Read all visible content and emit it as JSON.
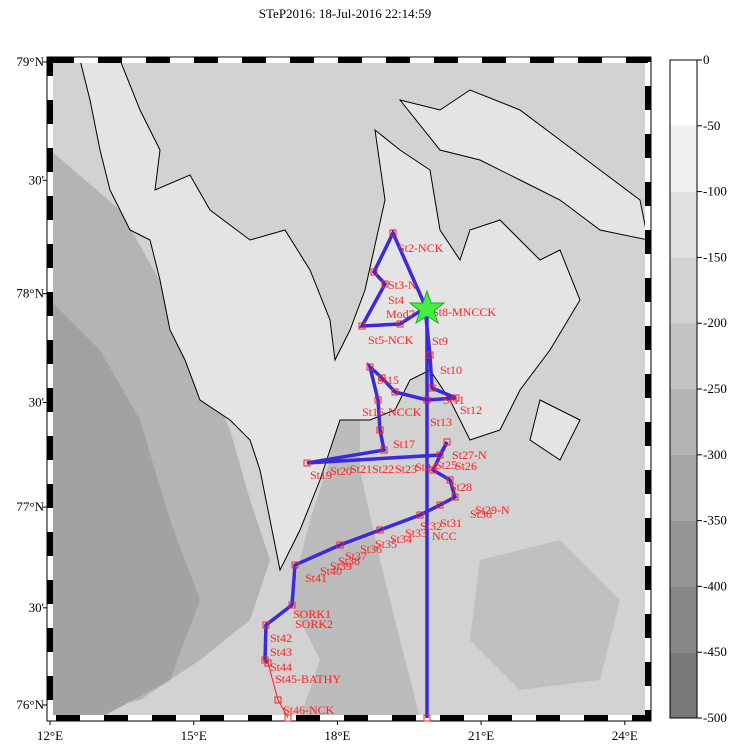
{
  "title": "STeP2016: 18-Jul-2016 22:14:59",
  "map": {
    "lon_ticks": [
      {
        "value": 12,
        "label": "12°E"
      },
      {
        "value": 15,
        "label": "15°E"
      },
      {
        "value": 18,
        "label": "18°E"
      },
      {
        "value": 21,
        "label": "21°E"
      },
      {
        "value": 24,
        "label": "24°E"
      }
    ],
    "lat_ticks": [
      {
        "value": 79,
        "label": "79°N"
      },
      {
        "value": 78.5,
        "label": "30'"
      },
      {
        "value": 78,
        "label": "78°N"
      },
      {
        "value": 77.5,
        "label": "30'"
      },
      {
        "value": 77,
        "label": "77°N"
      },
      {
        "value": 76.5,
        "label": "30'"
      },
      {
        "value": 76,
        "label": "76°N"
      }
    ],
    "stations": [
      "St2-NCK",
      "St3-N",
      "St4",
      "Mod7",
      "St8-MNCCK",
      "St5-NCK",
      "St9",
      "St10",
      "St15",
      "St11",
      "St12",
      "St16-NCCK",
      "St13",
      "St17",
      "St27-N",
      "St26",
      "St19",
      "St20",
      "St21",
      "St22",
      "St23",
      "St24",
      "St25",
      "St28",
      "St29-N",
      "St30",
      "St31",
      "NCC",
      "St32",
      "St33",
      "St34",
      "St35",
      "St36",
      "St37",
      "St38",
      "St39",
      "St40",
      "St41",
      "SORK1",
      "SORK2",
      "St42",
      "St43",
      "St44",
      "St45-BATHY",
      "St46-NCK"
    ]
  },
  "colorbar": {
    "ticks": [
      0,
      -50,
      -100,
      -150,
      -200,
      -250,
      -300,
      -350,
      -400,
      -450,
      -500
    ]
  }
}
